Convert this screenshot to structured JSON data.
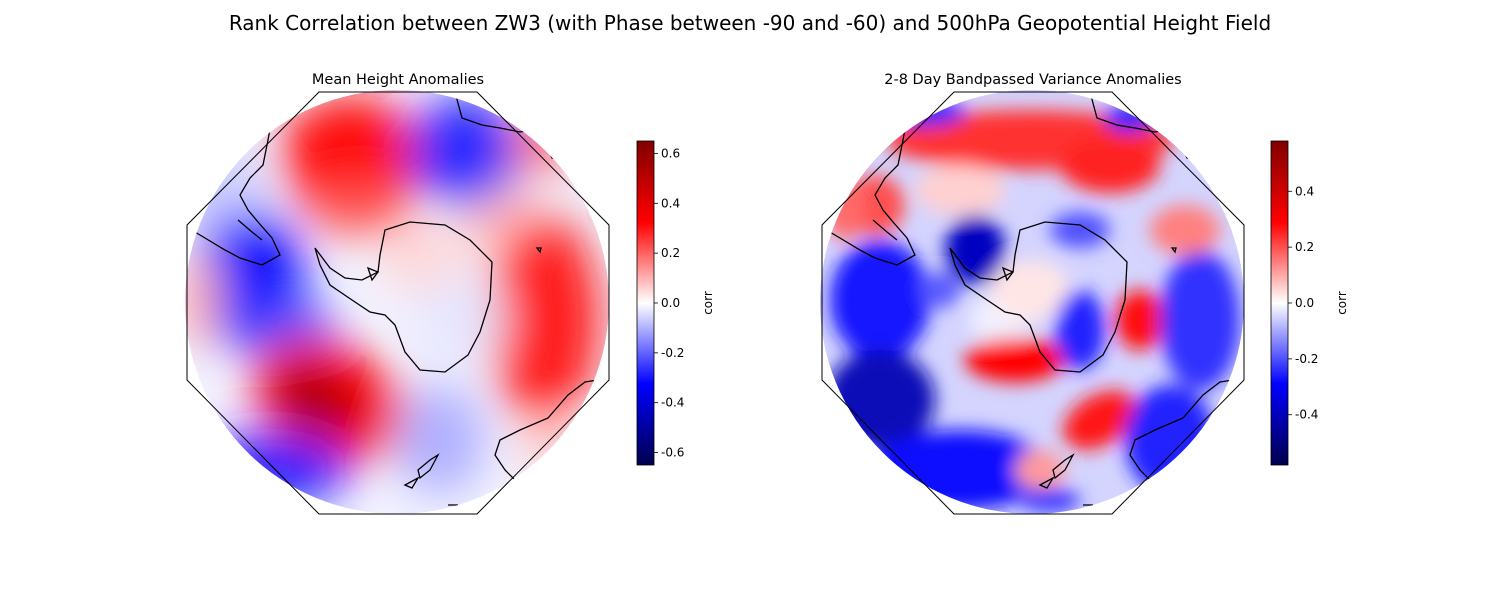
{
  "figure": {
    "title": "Rank Correlation between ZW3 (with Phase between -90 and -60) and 500hPa Geopotential Height Field"
  },
  "panels": [
    {
      "title": "Mean Height Anomalies",
      "colorbar": {
        "label": "corr",
        "vmin": -0.65,
        "vmax": 0.65,
        "ticks": [
          "0.6",
          "0.4",
          "0.2",
          "0.0",
          "-0.2",
          "-0.4",
          "-0.6"
        ],
        "tick_values": [
          0.6,
          0.4,
          0.2,
          0.0,
          -0.2,
          -0.4,
          -0.6
        ]
      }
    },
    {
      "title": "2-8 Day Bandpassed Variance Anomalies",
      "colorbar": {
        "label": "corr",
        "vmin": -0.58,
        "vmax": 0.58,
        "ticks": [
          "0.4",
          "0.2",
          "0.0",
          "-0.2",
          "-0.4"
        ],
        "tick_values": [
          0.4,
          0.2,
          0.0,
          -0.2,
          -0.4
        ]
      }
    }
  ],
  "colormap": {
    "name": "seismic",
    "low": "#00004c",
    "mid": "#ffffff",
    "high": "#800000"
  }
}
